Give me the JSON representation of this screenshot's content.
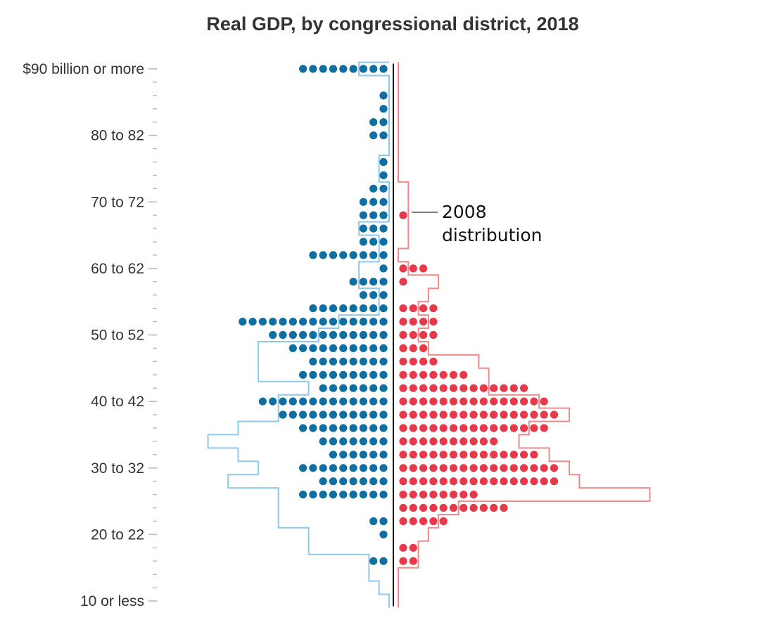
{
  "chart_data": {
    "type": "dot-histogram",
    "title": "Real GDP, by congressional district, 2018",
    "y_tick_labels": [
      {
        "bin": 0,
        "label": "10 or less"
      },
      {
        "bin": 5,
        "label": "20 to 22"
      },
      {
        "bin": 10,
        "label": "30 to 32"
      },
      {
        "bin": 15,
        "label": "40 to 42"
      },
      {
        "bin": 20,
        "label": "50 to 52"
      },
      {
        "bin": 25,
        "label": "60 to 62"
      },
      {
        "bin": 30,
        "label": "70 to 72"
      },
      {
        "bin": 35,
        "label": "80 to 82"
      },
      {
        "bin": 40,
        "label": "$90 billion or more"
      }
    ],
    "bin_range": [
      0,
      40
    ],
    "colors": {
      "dem": "#0f6fa3",
      "rep": "#e8394a",
      "dem_2008": "#8ec9ea",
      "rep_2008": "#f08a8a",
      "axis": "#111111",
      "ticks": "#bbbbbb"
    },
    "series": [
      {
        "side": "left",
        "dots_by_bin": [
          0,
          0,
          0,
          2,
          0,
          1,
          2,
          0,
          9,
          7,
          9,
          6,
          7,
          9,
          11,
          13,
          7,
          9,
          8,
          10,
          12,
          15,
          8,
          3,
          4,
          1,
          8,
          3,
          3,
          3,
          3,
          2,
          1,
          1,
          0,
          2,
          2,
          1,
          1,
          0,
          9
        ]
      },
      {
        "side": "right",
        "dots_by_bin": [
          0,
          0,
          0,
          2,
          2,
          0,
          5,
          11,
          8,
          16,
          16,
          14,
          10,
          15,
          16,
          15,
          13,
          7,
          4,
          3,
          4,
          4,
          4,
          0,
          1,
          3,
          0,
          0,
          0,
          1,
          0,
          0,
          0,
          0,
          0,
          0,
          0,
          0,
          0,
          0,
          0
        ]
      },
      {
        "name": "2008 distribution",
        "side": "left",
        "outline_by_bin": [
          0,
          1,
          2,
          2,
          8,
          8,
          11,
          11,
          11,
          16,
          13,
          15,
          18,
          15,
          11,
          11,
          8,
          13,
          13,
          13,
          7,
          5,
          1,
          1,
          3,
          3,
          1,
          1,
          3,
          0,
          0,
          0,
          1,
          1,
          0,
          0,
          0,
          0,
          0,
          0,
          3
        ]
      },
      {
        "name": "2008 distribution",
        "side": "right",
        "outline_by_bin": [
          0,
          0,
          0,
          2,
          2,
          3,
          4,
          6,
          25,
          18,
          17,
          15,
          12,
          13,
          17,
          14,
          9,
          9,
          8,
          3,
          2,
          3,
          2,
          3,
          4,
          1,
          0,
          1,
          1,
          1,
          1,
          1,
          0,
          0,
          0,
          0,
          0,
          0,
          0,
          0,
          0
        ]
      }
    ],
    "annotation": {
      "line1": "2008",
      "line2": "distribution"
    }
  }
}
